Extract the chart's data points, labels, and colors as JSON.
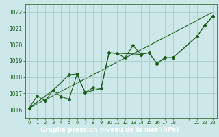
{
  "background_color": "#cce8e8",
  "grid_color": "#aacccc",
  "line_color": "#1a5c1a",
  "text_color": "#1a5c1a",
  "label_bar_color": "#2d6e2d",
  "label_text_color": "#ffffff",
  "xlabel": "Graphe pression niveau de la mer (hPa)",
  "ylim": [
    1015.5,
    1022.5
  ],
  "xlim": [
    -0.5,
    23.5
  ],
  "yticks": [
    1016,
    1017,
    1018,
    1019,
    1020,
    1021,
    1022
  ],
  "xtick_labels": [
    "0",
    "1",
    "2",
    "3",
    "4",
    "5",
    "6",
    "7",
    "8",
    "9",
    "10",
    "11",
    "12",
    "13",
    "14",
    "15",
    "16",
    "17",
    "18",
    "",
    "",
    "21",
    "22",
    "23"
  ],
  "xtick_positions": [
    0,
    1,
    2,
    3,
    4,
    5,
    6,
    7,
    8,
    9,
    10,
    11,
    12,
    13,
    14,
    15,
    16,
    17,
    18,
    19,
    20,
    21,
    22,
    23
  ],
  "series1_x": [
    0,
    1,
    2,
    3,
    4,
    5,
    6,
    7,
    8,
    9,
    10,
    11,
    12,
    13,
    14,
    15,
    16,
    17,
    18,
    21,
    22,
    23
  ],
  "series1_y": [
    1016.1,
    1016.85,
    1016.55,
    1017.2,
    1016.8,
    1016.65,
    1018.2,
    1017.05,
    1017.35,
    1017.3,
    1019.5,
    1019.45,
    1019.2,
    1019.95,
    1019.4,
    1019.5,
    1018.85,
    1019.2,
    1019.2,
    1020.5,
    1021.2,
    1021.75
  ],
  "series2_x": [
    0,
    3,
    5,
    6,
    7,
    9,
    10,
    14,
    15,
    16,
    17,
    18,
    21,
    22,
    23
  ],
  "series2_y": [
    1016.1,
    1017.2,
    1018.15,
    1018.2,
    1017.05,
    1017.3,
    1019.5,
    1019.4,
    1019.5,
    1018.85,
    1019.2,
    1019.2,
    1020.5,
    1021.2,
    1021.75
  ],
  "trend_x": [
    0,
    23
  ],
  "trend_y": [
    1016.1,
    1022.0
  ]
}
